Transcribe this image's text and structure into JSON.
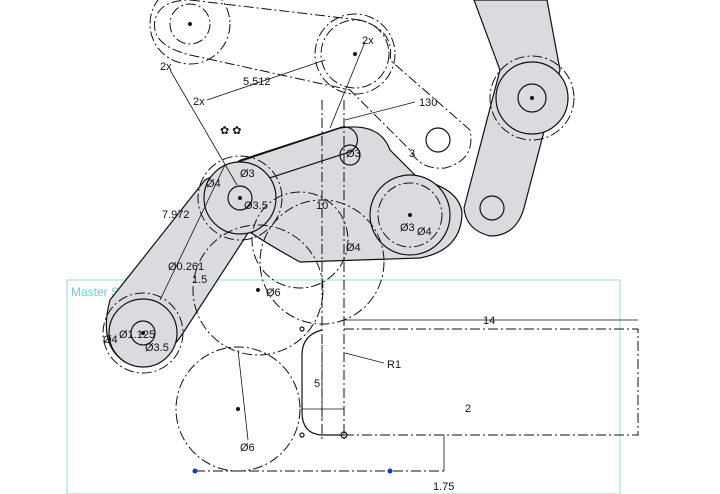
{
  "region_label": "Master Sketch",
  "dimensions": {
    "d_2x_a": "2x",
    "d_2x_b": "2x",
    "d_2x_c": "2x",
    "d_5512": "5.512",
    "d_130": "130",
    "d_3": "3",
    "d_dia3_top": "Ø3",
    "d_dia3_mid": "Ø3",
    "d_dia3_5": "Ø3.5",
    "d_dia4_left": "Ø4",
    "d_7972": "7.972",
    "d_10": "10",
    "d_dia3_right": "Ø3",
    "d_dia4_right": "Ø4",
    "d_dia4_mid": "Ø4",
    "d_dia0_261": "Ø0.261",
    "d_1_5": "1.5",
    "d_dia6_top": "Ø6",
    "d_14": "14",
    "d_dia1_125": "Ø1.125",
    "d_dia4_bl": "Ø4",
    "d_dia3_5_bl": "Ø3.5",
    "d_r1": "R1",
    "d_5": "5",
    "d_2": "2",
    "d_dia6_bot": "Ø6",
    "d_1_75": "1.75"
  },
  "colors": {
    "link_fill": "#d9dbde",
    "master_box": "#9fd3ea",
    "master_label": "#7cc4e0",
    "handle": "#1a2fd6"
  }
}
